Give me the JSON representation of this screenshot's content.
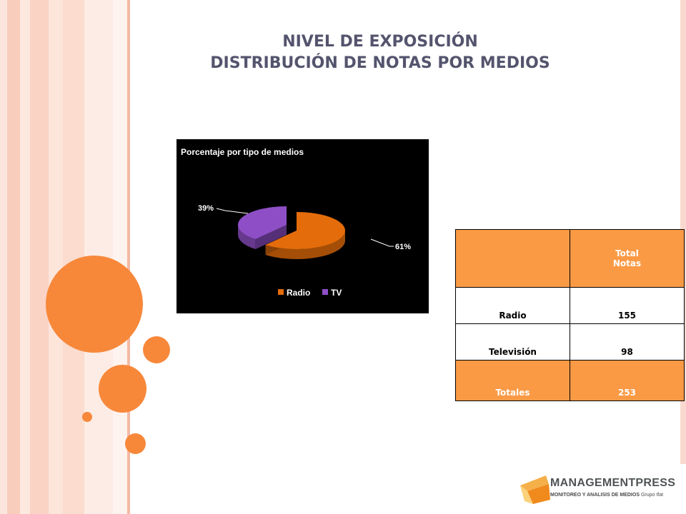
{
  "title": {
    "line1": "NIVEL DE EXPOSICIÓN",
    "line2": "DISTRIBUCIÓN DE NOTAS POR MEDIOS"
  },
  "chart_data": {
    "type": "pie",
    "title": "Porcentaje por tipo de medios",
    "categories": [
      "Radio",
      "TV"
    ],
    "values": [
      61,
      39
    ],
    "labels": [
      "61%",
      "39%"
    ],
    "colors": [
      "#e46c0a",
      "#8e4fc6"
    ],
    "legend": "bottom",
    "background": "#000000"
  },
  "table": {
    "header": [
      "",
      "Total\nNotas"
    ],
    "rows": [
      [
        "Radio",
        "155"
      ],
      [
        "Televisión",
        "98"
      ]
    ],
    "total": [
      "Totales",
      "253"
    ]
  },
  "logo": {
    "name": "MANAGEMENTPRESS",
    "tagline": "MONITOREO Y ANALISIS DE MEDIOS",
    "group": "Grupo Ifat"
  },
  "colors": {
    "accent": "#f7883a",
    "title": "#54546e",
    "stripe": "#f9c8b8"
  }
}
